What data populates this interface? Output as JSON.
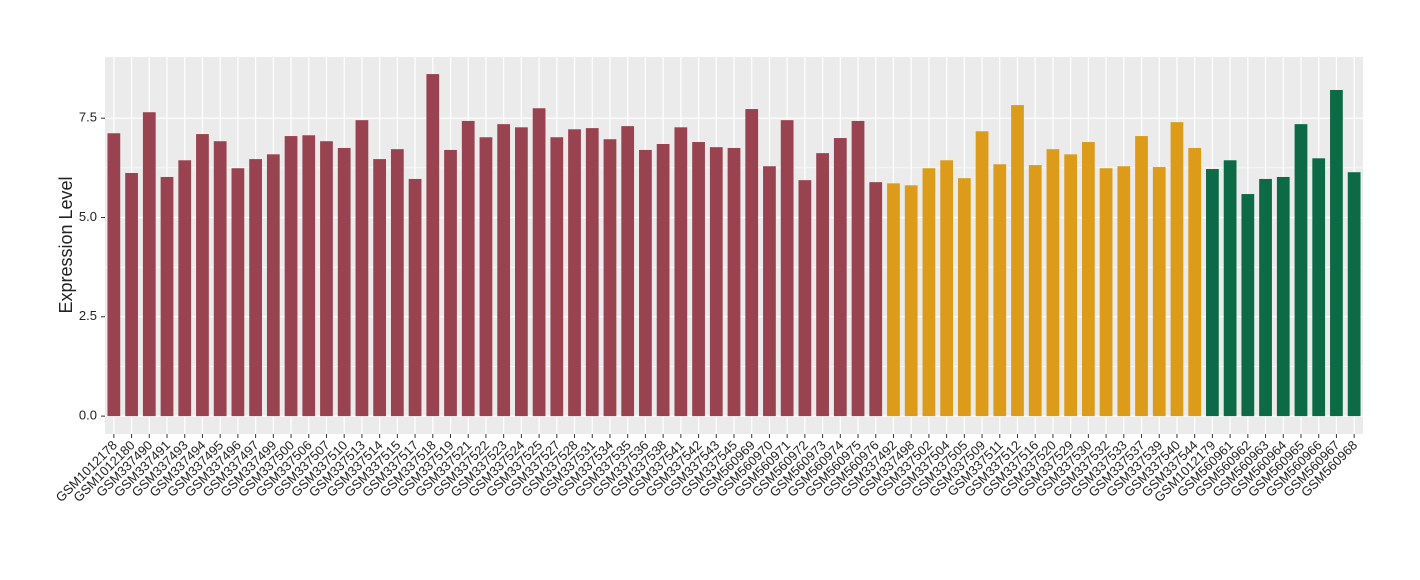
{
  "chart_data": {
    "type": "bar",
    "y_label": "Expression Level",
    "categories": [
      "GSM1012178",
      "GSM1012180",
      "GSM337490",
      "GSM337491",
      "GSM337493",
      "GSM337494",
      "GSM337495",
      "GSM337496",
      "GSM337497",
      "GSM337499",
      "GSM337500",
      "GSM337506",
      "GSM337507",
      "GSM337510",
      "GSM337513",
      "GSM337514",
      "GSM337515",
      "GSM337517",
      "GSM337518",
      "GSM337519",
      "GSM337521",
      "GSM337522",
      "GSM337523",
      "GSM337524",
      "GSM337525",
      "GSM337527",
      "GSM337528",
      "GSM337531",
      "GSM337534",
      "GSM337535",
      "GSM337536",
      "GSM337538",
      "GSM337541",
      "GSM337542",
      "GSM337543",
      "GSM337545",
      "GSM560969",
      "GSM560970",
      "GSM560971",
      "GSM560972",
      "GSM560973",
      "GSM560974",
      "GSM560975",
      "GSM560976",
      "GSM337492",
      "GSM337498",
      "GSM337502",
      "GSM337504",
      "GSM337505",
      "GSM337509",
      "GSM337511",
      "GSM337512",
      "GSM337516",
      "GSM337520",
      "GSM337529",
      "GSM337530",
      "GSM337532",
      "GSM337533",
      "GSM337537",
      "GSM337539",
      "GSM337540",
      "GSM337544",
      "GSM1012179",
      "GSM560961",
      "GSM560962",
      "GSM560963",
      "GSM560964",
      "GSM560965",
      "GSM560966",
      "GSM560967",
      "GSM560968"
    ],
    "values": [
      7.12,
      6.12,
      7.65,
      6.02,
      6.44,
      7.1,
      6.92,
      6.24,
      6.47,
      6.59,
      7.05,
      7.07,
      6.92,
      6.75,
      7.45,
      6.47,
      6.72,
      5.97,
      8.61,
      6.7,
      7.43,
      7.02,
      7.35,
      7.27,
      7.75,
      7.02,
      7.22,
      7.25,
      6.97,
      7.3,
      6.7,
      6.85,
      7.27,
      6.9,
      6.77,
      6.75,
      7.73,
      6.29,
      7.45,
      5.94,
      6.62,
      7.0,
      7.43,
      5.89,
      5.86,
      5.81,
      6.24,
      6.44,
      5.99,
      7.17,
      6.34,
      7.83,
      6.32,
      6.72,
      6.59,
      6.9,
      6.24,
      6.29,
      7.05,
      6.27,
      7.4,
      6.75,
      6.22,
      6.44,
      5.59,
      5.97,
      6.02,
      7.35,
      6.49,
      8.21,
      6.14
    ],
    "colors": [
      "#9a4350",
      "#9a4350",
      "#9a4350",
      "#9a4350",
      "#9a4350",
      "#9a4350",
      "#9a4350",
      "#9a4350",
      "#9a4350",
      "#9a4350",
      "#9a4350",
      "#9a4350",
      "#9a4350",
      "#9a4350",
      "#9a4350",
      "#9a4350",
      "#9a4350",
      "#9a4350",
      "#9a4350",
      "#9a4350",
      "#9a4350",
      "#9a4350",
      "#9a4350",
      "#9a4350",
      "#9a4350",
      "#9a4350",
      "#9a4350",
      "#9a4350",
      "#9a4350",
      "#9a4350",
      "#9a4350",
      "#9a4350",
      "#9a4350",
      "#9a4350",
      "#9a4350",
      "#9a4350",
      "#9a4350",
      "#9a4350",
      "#9a4350",
      "#9a4350",
      "#9a4350",
      "#9a4350",
      "#9a4350",
      "#9a4350",
      "#dc9c1a",
      "#dc9c1a",
      "#dc9c1a",
      "#dc9c1a",
      "#dc9c1a",
      "#dc9c1a",
      "#dc9c1a",
      "#dc9c1a",
      "#dc9c1a",
      "#dc9c1a",
      "#dc9c1a",
      "#dc9c1a",
      "#dc9c1a",
      "#dc9c1a",
      "#dc9c1a",
      "#dc9c1a",
      "#dc9c1a",
      "#dc9c1a",
      "#0c6a47",
      "#0c6a47",
      "#0c6a47",
      "#0c6a47",
      "#0c6a47",
      "#0c6a47",
      "#0c6a47",
      "#0c6a47",
      "#0c6a47"
    ],
    "ylim": [
      -0.45,
      9.04
    ],
    "yticks": [
      {
        "value": 0,
        "label": "0.0"
      },
      2.5,
      {
        "value": 5,
        "label": "5.0"
      },
      7.5
    ],
    "grid": true
  }
}
